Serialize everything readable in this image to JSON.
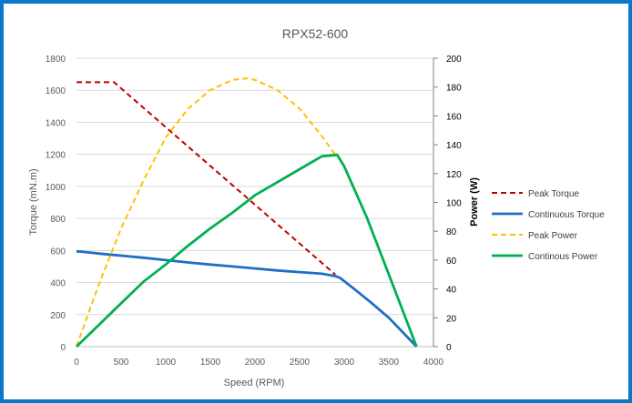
{
  "chart_data": {
    "type": "line",
    "title": "RPX52-600",
    "xlabel": "Speed (RPM)",
    "ylabel": "Torque (mN.m)",
    "y2label": "Power (W)",
    "xlim": [
      0,
      4000
    ],
    "ylim": [
      0,
      1800
    ],
    "y2lim": [
      0,
      200
    ],
    "x_ticks": [
      0,
      500,
      1000,
      1500,
      2000,
      2500,
      3000,
      3500,
      4000
    ],
    "y_ticks": [
      0,
      200,
      400,
      600,
      800,
      1000,
      1200,
      1400,
      1600,
      1800
    ],
    "y2_ticks": [
      0,
      20,
      40,
      60,
      80,
      100,
      120,
      140,
      160,
      180,
      200
    ],
    "grid": "horizontal",
    "legend_position": "right",
    "series": [
      {
        "name": "Peak Torque",
        "axis": "left",
        "color": "#c00000",
        "dash": "dashed",
        "x": [
          0,
          420,
          2900
        ],
        "y": [
          1650,
          1650,
          450
        ]
      },
      {
        "name": "Continuous Torque",
        "axis": "left",
        "color": "#1f6fc5",
        "dash": "solid",
        "x": [
          0,
          100,
          300,
          500,
          750,
          1000,
          1250,
          1500,
          1750,
          2000,
          2250,
          2500,
          2750,
          2900,
          2950,
          3100,
          3300,
          3500,
          3810
        ],
        "y": [
          595,
          590,
          578,
          568,
          555,
          540,
          525,
          512,
          500,
          488,
          475,
          465,
          455,
          440,
          430,
          365,
          275,
          180,
          0
        ]
      },
      {
        "name": "Peak Power",
        "axis": "right",
        "color": "#ffc000",
        "dash": "dashed",
        "x": [
          0,
          250,
          500,
          750,
          1000,
          1250,
          1500,
          1750,
          1900,
          2000,
          2250,
          2500,
          2750,
          2900
        ],
        "y": [
          0,
          43,
          82,
          115,
          145,
          165,
          178,
          185,
          186,
          185,
          178,
          165,
          146,
          133
        ]
      },
      {
        "name": "Continous Power",
        "axis": "right",
        "color": "#00b050",
        "dash": "solid",
        "x": [
          0,
          250,
          500,
          750,
          1000,
          1250,
          1500,
          1750,
          2000,
          2250,
          2500,
          2750,
          2920,
          3000,
          3250,
          3500,
          3810
        ],
        "y": [
          0,
          15,
          30,
          45,
          57,
          70,
          82,
          93,
          105,
          114,
          123,
          132,
          133,
          125,
          90,
          50,
          0
        ]
      }
    ]
  }
}
